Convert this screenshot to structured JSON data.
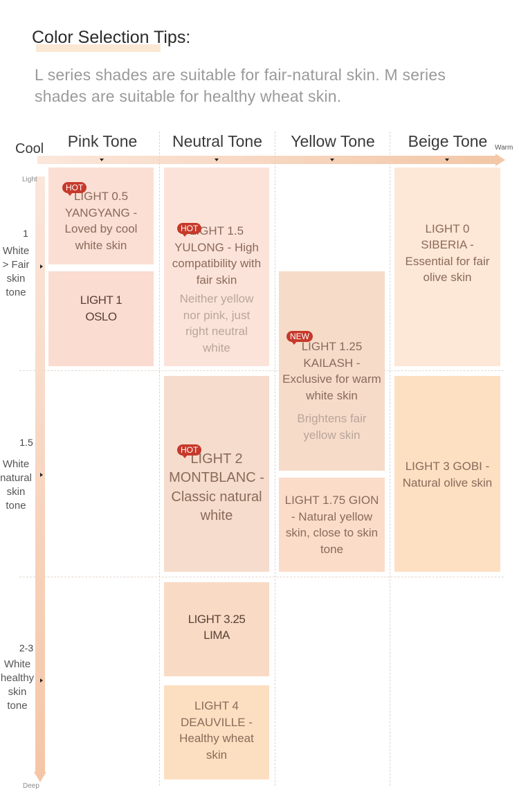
{
  "header": {
    "title": "Color Selection Tips:",
    "subtitle": "L series shades are suitable for fair-natural skin. M series shades are suitable for healthy wheat skin."
  },
  "axes": {
    "cool_label": "Cool",
    "warm_label": "Warm",
    "light_label": "Light",
    "deep_label": "Deep",
    "columns": [
      "Pink Tone",
      "Neutral Tone",
      "Yellow Tone",
      "Beige Tone"
    ],
    "rows": [
      {
        "number": "1",
        "label": "White > Fair skin tone"
      },
      {
        "number": "1.5",
        "label": "White natural skin tone"
      },
      {
        "number": "2-3",
        "label": "White healthy skin tone"
      }
    ]
  },
  "badges": {
    "hot": "HOT",
    "new": "NEW"
  },
  "shades": [
    {
      "name": "LIGHT 0.5 YANGYANG - Loved by cool white skin",
      "note": "",
      "badge": "HOT",
      "color": "#fbdfd4"
    },
    {
      "name": "LIGHT 1 OSLO",
      "note": "",
      "badge": "",
      "color": "#fbdcd0"
    },
    {
      "name": "LIGHT 1.5 YULONG - High compatibility with fair skin",
      "note": "Neither yellow nor pink, just right neutral white",
      "badge": "HOT",
      "color": "#fbe3d9"
    },
    {
      "name": "LIGHT 2 MONTBLANC - Classic natural white",
      "note": "",
      "badge": "HOT",
      "color": "#f6dccd"
    },
    {
      "name": "LIGHT 3.25 LIMA",
      "note": "",
      "badge": "",
      "color": "#f9dbc5"
    },
    {
      "name": "LIGHT 4 DEAUVILLE - Healthy wheat skin",
      "note": "",
      "badge": "",
      "color": "#fcdfc0"
    },
    {
      "name": "LIGHT 1.25 KAILASH - Exclusive for warm white skin",
      "note": "Brightens fair yellow skin",
      "badge": "NEW",
      "color": "#f6dbc9"
    },
    {
      "name": "LIGHT 1.75 GION - Natural yellow skin, close to skin tone",
      "note": "",
      "badge": "",
      "color": "#fbdcc9"
    },
    {
      "name": "LIGHT 0 SIBERIA - Essential for fair olive skin",
      "note": "",
      "badge": "",
      "color": "#fde7d6"
    },
    {
      "name": "LIGHT 3 GOBI - Natural olive skin",
      "note": "",
      "badge": "",
      "color": "#fddfc2"
    }
  ]
}
